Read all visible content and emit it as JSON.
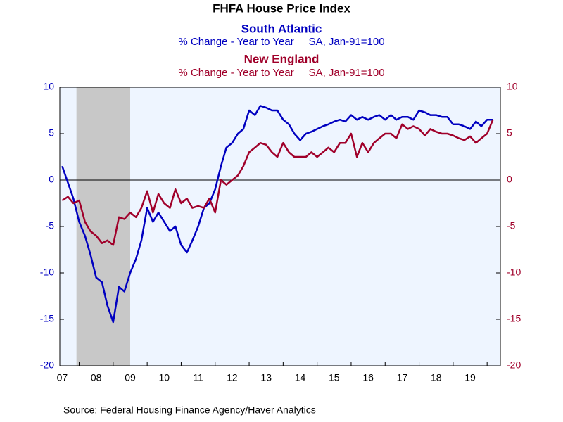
{
  "chart_data": {
    "type": "line",
    "title": "FHFA House Price Index",
    "panels": [
      {
        "name": "South Atlantic",
        "subtitle": "% Change - Year to Year     SA, Jan-91=100"
      },
      {
        "name": "New England",
        "subtitle": "% Change - Year to Year     SA, Jan-91=100"
      }
    ],
    "source": "Source:  Federal Housing Finance Agency/Haver Analytics",
    "x": [
      2007.5,
      2007.67,
      2007.83,
      2008.0,
      2008.17,
      2008.33,
      2008.5,
      2008.67,
      2008.83,
      2009.0,
      2009.17,
      2009.33,
      2009.5,
      2009.67,
      2009.83,
      2010.0,
      2010.17,
      2010.33,
      2010.5,
      2010.67,
      2010.83,
      2011.0,
      2011.17,
      2011.33,
      2011.5,
      2011.67,
      2011.83,
      2012.0,
      2012.17,
      2012.33,
      2012.5,
      2012.67,
      2012.83,
      2013.0,
      2013.17,
      2013.33,
      2013.5,
      2013.67,
      2013.83,
      2014.0,
      2014.17,
      2014.33,
      2014.5,
      2014.67,
      2014.83,
      2015.0,
      2015.17,
      2015.33,
      2015.5,
      2015.67,
      2015.83,
      2016.0,
      2016.17,
      2016.33,
      2016.5,
      2016.67,
      2016.83,
      2017.0,
      2017.17,
      2017.33,
      2017.5,
      2017.67,
      2017.83,
      2018.0,
      2018.17,
      2018.33,
      2018.5,
      2018.67,
      2018.83,
      2019.0,
      2019.17,
      2019.33,
      2019.5,
      2019.67,
      2019.83,
      2020.0,
      2020.17
    ],
    "series": [
      {
        "name": "South Atlantic",
        "color": "#0000c0",
        "axis": "y",
        "values": [
          1.5,
          -0.3,
          -2,
          -4.5,
          -6,
          -8,
          -10.5,
          -11,
          -13.5,
          -15.3,
          -11.5,
          -12,
          -10,
          -8.5,
          -6.5,
          -3,
          -4.5,
          -3.5,
          -4.5,
          -5.5,
          -5,
          -7,
          -7.8,
          -6.5,
          -5,
          -3,
          -2.5,
          -1,
          1.5,
          3.5,
          4,
          5,
          5.5,
          7.5,
          7,
          8,
          7.8,
          7.5,
          7.5,
          6.5,
          6,
          5,
          4.3,
          5,
          5.2,
          5.5,
          5.8,
          6,
          6.3,
          6.5,
          6.3,
          7,
          6.5,
          6.8,
          6.5,
          6.8,
          7,
          6.5,
          7,
          6.5,
          6.8,
          6.8,
          6.5,
          7.5,
          7.3,
          7,
          7,
          6.8,
          6.8,
          6,
          6,
          5.8,
          5.5,
          6.3,
          5.8,
          6.5,
          6.5
        ]
      },
      {
        "name": "New England",
        "color": "#a0002a",
        "axis": "y2",
        "values": [
          -2.2,
          -1.8,
          -2.5,
          -2.2,
          -4.5,
          -5.5,
          -6,
          -6.8,
          -6.5,
          -7,
          -4,
          -4.2,
          -3.5,
          -4,
          -3,
          -1.2,
          -3.5,
          -1.5,
          -2.5,
          -3,
          -1,
          -2.5,
          -2,
          -3,
          -2.8,
          -3,
          -2,
          -3.5,
          0,
          -0.5,
          0,
          0.5,
          1.5,
          3,
          3.5,
          4,
          3.8,
          3,
          2.5,
          4,
          3,
          2.5,
          2.5,
          2.5,
          3,
          2.5,
          3,
          3.5,
          3,
          4,
          4,
          5,
          2.5,
          4,
          3,
          4,
          4.5,
          5,
          5,
          4.5,
          6,
          5.5,
          5.8,
          5.5,
          4.8,
          5.5,
          5.2,
          5,
          5,
          4.8,
          4.5,
          4.3,
          4.7,
          4,
          4.5,
          5,
          6.5
        ]
      }
    ],
    "shading": [
      [
        2007.92,
        2009.5
      ]
    ],
    "xlim": [
      2007.43,
      2020.39
    ],
    "xticks": [
      {
        "value": 2007.5,
        "label": "07"
      },
      {
        "value": 2008.5,
        "label": "08"
      },
      {
        "value": 2009.5,
        "label": "09"
      },
      {
        "value": 2010.5,
        "label": "10"
      },
      {
        "value": 2011.5,
        "label": "11"
      },
      {
        "value": 2012.5,
        "label": "12"
      },
      {
        "value": 2013.5,
        "label": "13"
      },
      {
        "value": 2014.5,
        "label": "14"
      },
      {
        "value": 2015.5,
        "label": "15"
      },
      {
        "value": 2016.5,
        "label": "16"
      },
      {
        "value": 2017.5,
        "label": "17"
      },
      {
        "value": 2018.5,
        "label": "18"
      },
      {
        "value": 2019.5,
        "label": "19"
      }
    ],
    "ylim": [
      -20,
      10
    ],
    "yticks": [
      -20,
      -15,
      -10,
      -5,
      0,
      5,
      10
    ],
    "y2lim": [
      -20,
      10
    ],
    "y2ticks": [
      -20,
      -15,
      -10,
      -5,
      0,
      5,
      10
    ],
    "zero_line": true,
    "grid": false,
    "plot_background": "#eef5ff",
    "shading_color": "#c8c8c8"
  }
}
